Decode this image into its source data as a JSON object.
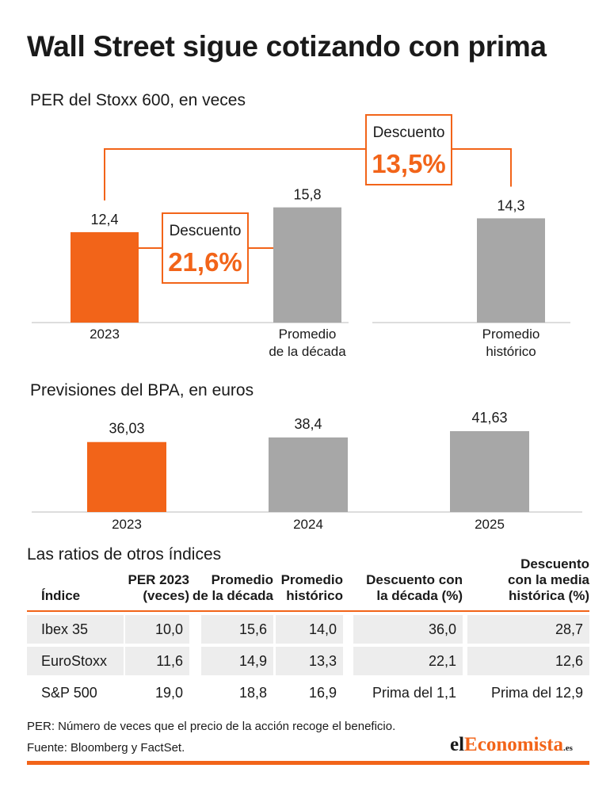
{
  "title": "Wall Street sigue cotizando con prima",
  "colors": {
    "accent": "#f26419",
    "gray": "#a7a7a7",
    "row_shade": "#ededed"
  },
  "chart_data": [
    {
      "type": "bar",
      "title": "PER del Stoxx 600, en veces",
      "categories": [
        "2023",
        "Promedio de la década",
        "Promedio histórico"
      ],
      "category_lines": [
        [
          "2023"
        ],
        [
          "Promedio",
          "de la década"
        ],
        [
          "Promedio",
          "histórico"
        ]
      ],
      "values": [
        12.4,
        15.8,
        14.3
      ],
      "value_labels": [
        "12,4",
        "15,8",
        "14,3"
      ],
      "annotations": [
        {
          "label": "Descuento",
          "value": "21,6%",
          "between": [
            "2023",
            "Promedio de la década"
          ]
        },
        {
          "label": "Descuento",
          "value": "13,5%",
          "between": [
            "2023",
            "Promedio histórico"
          ]
        }
      ]
    },
    {
      "type": "bar",
      "title": "Previsiones del BPA, en euros",
      "categories": [
        "2023",
        "2024",
        "2025"
      ],
      "values": [
        36.03,
        38.4,
        41.63
      ],
      "value_labels": [
        "36,03",
        "38,4",
        "41,63"
      ]
    }
  ],
  "table": {
    "title": "Las ratios de otros índices",
    "headers": [
      [
        "Índice"
      ],
      [
        "PER 2023",
        "(veces)"
      ],
      [
        "Promedio",
        "de la década"
      ],
      [
        "Promedio",
        "histórico"
      ],
      [
        "Descuento con",
        "la década (%)"
      ],
      [
        "Descuento",
        "con la media",
        "histórica (%)"
      ]
    ],
    "rows": [
      [
        "Ibex 35",
        "10,0",
        "15,6",
        "14,0",
        "36,0",
        "28,7"
      ],
      [
        "EuroStoxx",
        "11,6",
        "14,9",
        "13,3",
        "22,1",
        "12,6"
      ],
      [
        "S&P 500",
        "19,0",
        "18,8",
        "16,9",
        "Prima del 1,1",
        "Prima del 12,9"
      ]
    ]
  },
  "note": "PER: Número de veces que el precio de la acción recoge el beneficio.",
  "source": "Fuente: Bloomberg y FactSet.",
  "logo": {
    "part1": "el",
    "part2": "Economista",
    "part3": ".es"
  }
}
